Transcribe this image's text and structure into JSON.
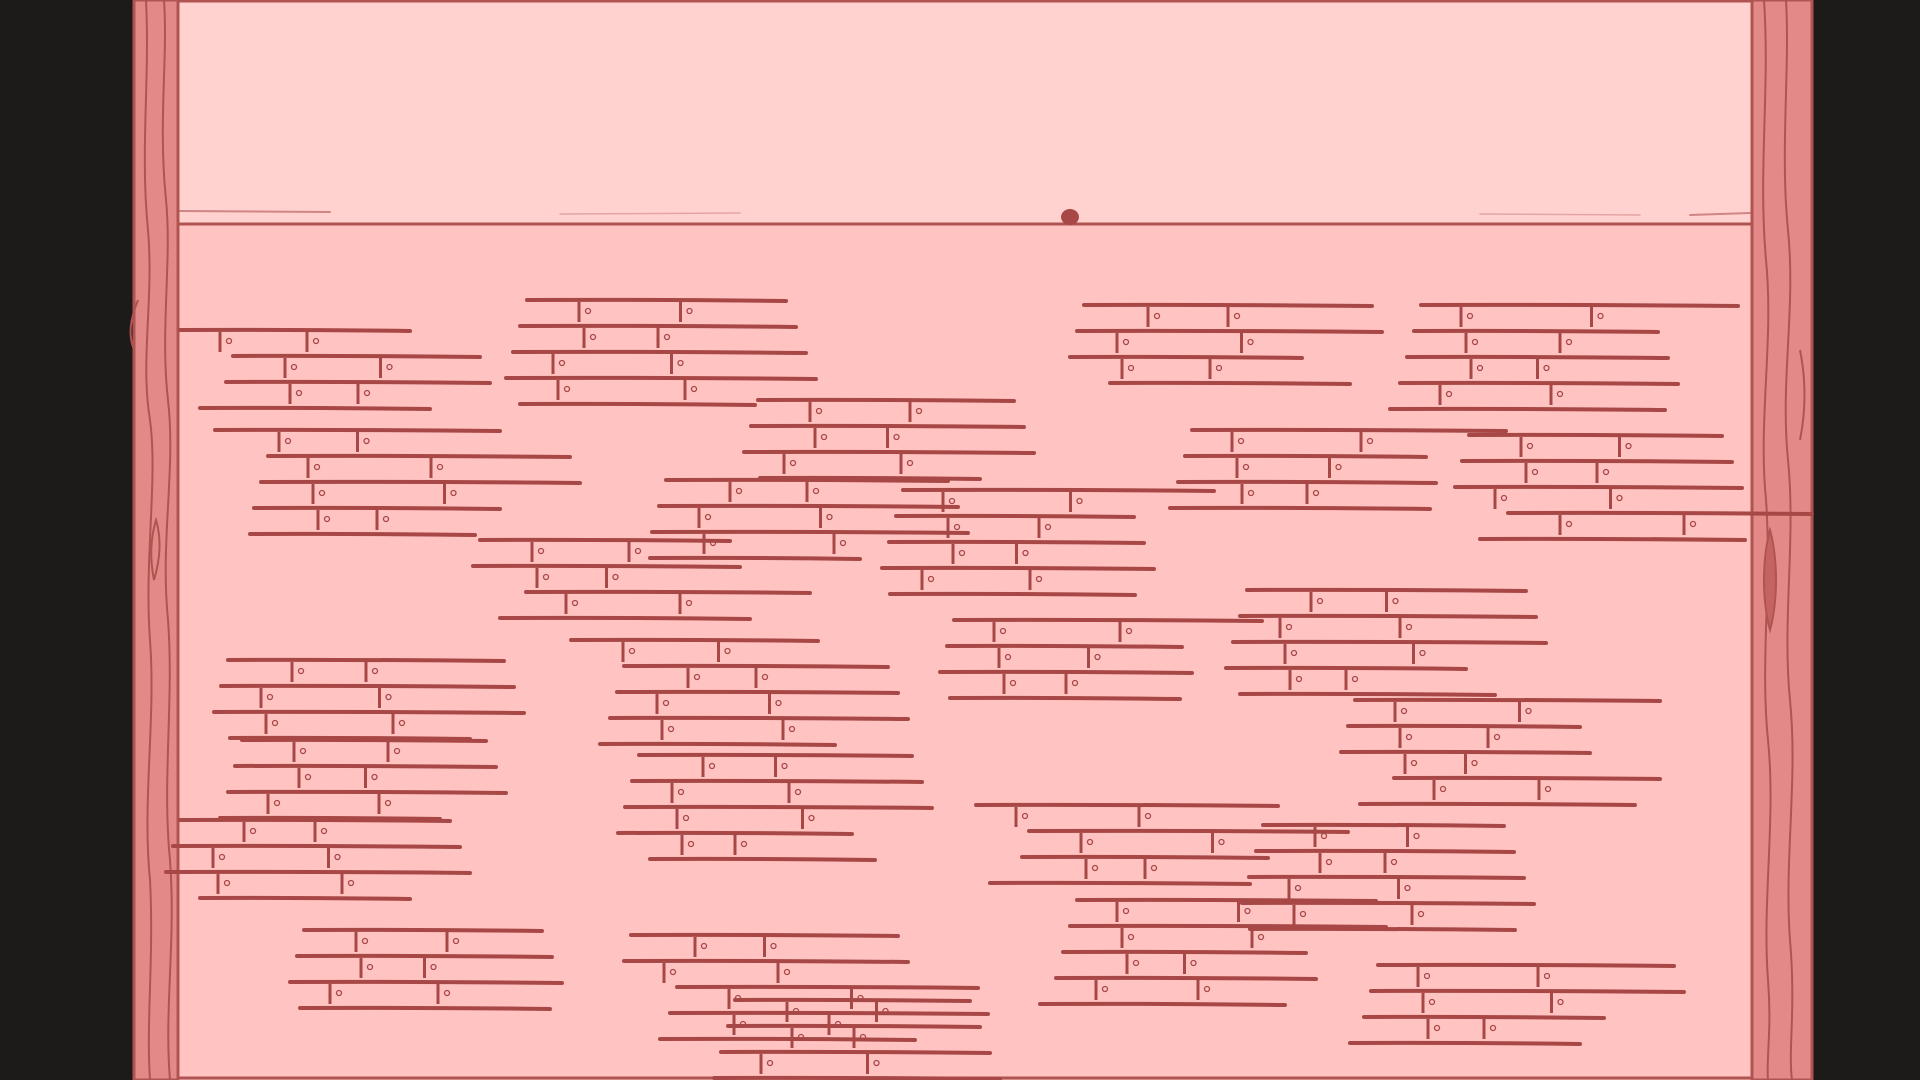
{
  "scene": {
    "type": "empty room background",
    "colors": {
      "letterbox": "#1d1a1a",
      "wall": "#ffd2cf",
      "floor": "#ffc3c1",
      "outline": "#b05452",
      "floor_strokes": "#a84846",
      "pillar_fill": "#e38a88",
      "pillar_lines": "#b05452",
      "cursor_dot": "#a84846"
    },
    "elements": [
      "left-wood-pillar-icon",
      "right-wood-pillar-icon",
      "back-wall",
      "floor",
      "wall-floor-seam",
      "floor-brick-patches",
      "center-dot"
    ]
  }
}
